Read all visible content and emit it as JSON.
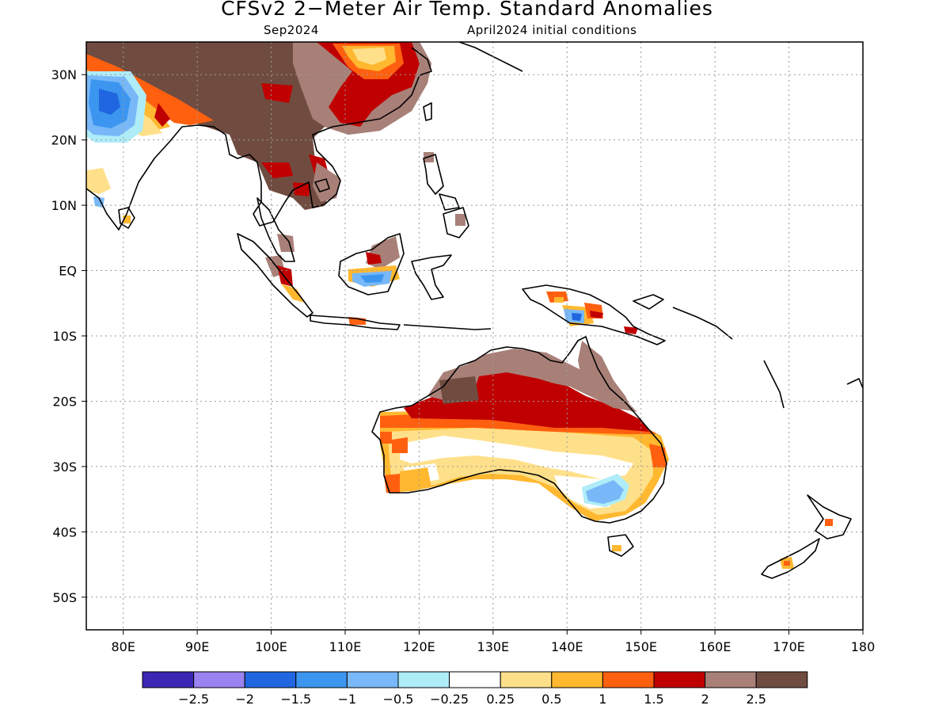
{
  "header": {
    "title": "CFSv2 2−Meter Air Temp. Standard Anomalies",
    "valid_month": "Sep2024",
    "init_conditions": "April2024 initial conditions"
  },
  "map": {
    "lon_range": [
      75,
      180
    ],
    "lat_range": [
      -55,
      35
    ],
    "lat_ticks": [
      {
        "value": 30,
        "label": "30N"
      },
      {
        "value": 20,
        "label": "20N"
      },
      {
        "value": 10,
        "label": "10N"
      },
      {
        "value": 0,
        "label": "EQ"
      },
      {
        "value": -10,
        "label": "10S"
      },
      {
        "value": -20,
        "label": "20S"
      },
      {
        "value": -30,
        "label": "30S"
      },
      {
        "value": -40,
        "label": "40S"
      },
      {
        "value": -50,
        "label": "50S"
      }
    ],
    "lon_ticks": [
      {
        "value": 80,
        "label": "80E"
      },
      {
        "value": 90,
        "label": "90E"
      },
      {
        "value": 100,
        "label": "100E"
      },
      {
        "value": 110,
        "label": "110E"
      },
      {
        "value": 120,
        "label": "120E"
      },
      {
        "value": 130,
        "label": "130E"
      },
      {
        "value": 140,
        "label": "140E"
      },
      {
        "value": 150,
        "label": "150E"
      },
      {
        "value": 160,
        "label": "160E"
      },
      {
        "value": 170,
        "label": "170E"
      },
      {
        "value": 180,
        "label": "180"
      }
    ],
    "gridlines": true
  },
  "colorbar": {
    "colors": [
      "#3a28b4",
      "#9a82f0",
      "#2066e0",
      "#3c96f0",
      "#78b8f8",
      "#aeecf8",
      "#ffffff",
      "#ffe08a",
      "#ffb830",
      "#ff6010",
      "#c00000",
      "#a88078",
      "#704c40"
    ],
    "labels": [
      "−2.5",
      "−2",
      "−1.5",
      "−1",
      "−0.5",
      "−0.25",
      "0.25",
      "0.5",
      "1",
      "1.5",
      "2",
      "2.5"
    ]
  },
  "palette": {
    "brown": "#704c40",
    "taupe": "#a88078",
    "dark_red": "#c00000",
    "red_orange": "#ff6010",
    "orange": "#ffb830",
    "yellow": "#ffe08a",
    "light_cyan": "#aeecf8",
    "light_blue": "#78b8f8",
    "blue": "#3c96f0",
    "deep_blue": "#2066e0"
  }
}
